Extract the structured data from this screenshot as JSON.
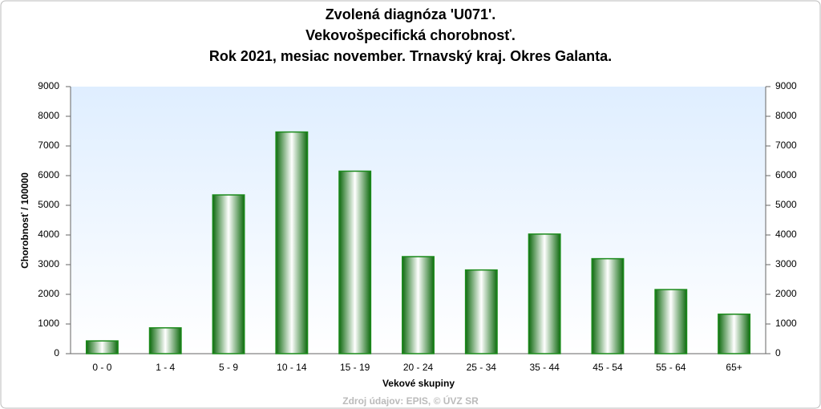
{
  "chart_data": {
    "type": "bar",
    "title": [
      "Zvolená diagnóza 'U071'.",
      "Vekovošpecifická chorobnosť.",
      "Rok 2021, mesiac november. Trnavský kraj. Okres Galanta."
    ],
    "x_label": "Vekové skupiny",
    "y_label": "Chorobnosť / 100000",
    "source": "Zdroj údajov: EPIS, © ÚVZ SR",
    "categories": [
      "0 - 0",
      "1 - 4",
      "5 - 9",
      "10 - 14",
      "15 - 19",
      "20 - 24",
      "25 - 34",
      "35 - 44",
      "45 - 54",
      "55 - 64",
      "65+"
    ],
    "values": [
      430,
      870,
      5350,
      7470,
      6150,
      3270,
      2820,
      4030,
      3200,
      2160,
      1330
    ],
    "color": "#1a8a1a",
    "ylim": [
      0,
      9000
    ],
    "yticks": [
      0,
      1000,
      2000,
      3000,
      4000,
      5000,
      6000,
      7000,
      8000,
      9000
    ],
    "y2lim": [
      0,
      9000
    ],
    "y2ticks": [
      0,
      1000,
      2000,
      3000,
      4000,
      5000,
      6000,
      7000,
      8000,
      9000
    ]
  }
}
